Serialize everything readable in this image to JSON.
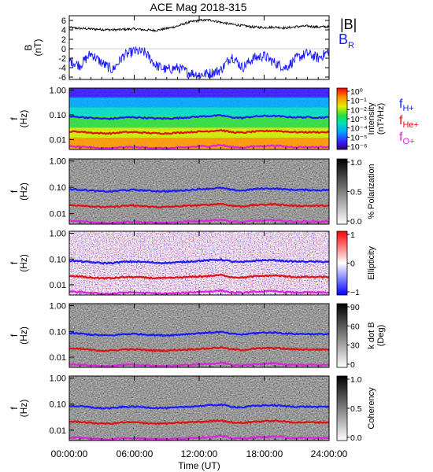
{
  "figure": {
    "title": "ACE Mag 2018-315",
    "time_axis": {
      "label": "Time (UT)",
      "tick_labels": [
        "00:00:00",
        "06:00:00",
        "12:00:00",
        "18:00:00",
        "24:00:00"
      ],
      "range_hours": [
        0,
        24
      ]
    }
  },
  "colors": {
    "B_total": "#000000",
    "B_R": "#1a1aff",
    "f_H": "#1a1aff",
    "f_He": "#e01010",
    "f_O": "#e020e0"
  },
  "legend": {
    "bt": "|B|",
    "br_main": "B",
    "br_sub": "R",
    "fh_main": "f",
    "fh_sub": "H+",
    "fhe_main": "f",
    "fhe_sub": "He+",
    "fo_main": "f",
    "fo_sub": "O+"
  },
  "panels": [
    {
      "id": "mag",
      "ylabel": [
        "B",
        "(nT)"
      ],
      "ylim": [
        -6.5,
        7
      ],
      "ticks": [
        "6",
        "4",
        "2",
        "0",
        "-2",
        "-4",
        "-6"
      ]
    },
    {
      "id": "intensity",
      "ylabel": [
        "f",
        "(Hz)"
      ],
      "ticks": [
        "1.00",
        "0.10",
        "0.01"
      ],
      "colorbar": {
        "type": "rainbow",
        "label": [
          "Intensity",
          "(nT²/Hz)"
        ],
        "ticks": [
          "10⁰",
          "10⁻¹",
          "10⁻²",
          "10⁻³",
          "10⁻⁴",
          "10⁻⁵",
          "10⁻⁶"
        ]
      }
    },
    {
      "id": "polarization",
      "ylabel": [
        "f",
        "(Hz)"
      ],
      "ticks": [
        "1.00",
        "0.10",
        "0.01"
      ],
      "colorbar": {
        "type": "gray",
        "label": [
          "% Polarization"
        ],
        "ticks": [
          "1.0",
          "0.5",
          "0.0"
        ]
      }
    },
    {
      "id": "ellipticity",
      "ylabel": [
        "f",
        "(Hz)"
      ],
      "ticks": [
        "1.00",
        "0.10",
        "0.01"
      ],
      "colorbar": {
        "type": "bwr",
        "label": [
          "Ellipticity"
        ],
        "ticks": [
          "1",
          "0",
          "−1"
        ]
      }
    },
    {
      "id": "kdotb",
      "ylabel": [
        "f",
        "(Hz)"
      ],
      "ticks": [
        "1.00",
        "0.10",
        "0.01"
      ],
      "colorbar": {
        "type": "gray",
        "label": [
          "k dot B",
          "(Deg)"
        ],
        "ticks": [
          "90",
          "60",
          "30",
          "0"
        ]
      }
    },
    {
      "id": "coherency",
      "ylabel": [
        "f",
        "(Hz)"
      ],
      "ticks": [
        "1.00",
        "0.10",
        "0.01"
      ],
      "colorbar": {
        "type": "gray",
        "label": [
          "Coherency"
        ],
        "ticks": [
          "1.0",
          "0.5",
          "0.0"
        ]
      }
    }
  ],
  "chart_data": {
    "type": "line",
    "title": "ACE Mag 2018-315",
    "xlabel": "Time (UT)",
    "x_hours": [
      0,
      1,
      2,
      3,
      4,
      5,
      6,
      7,
      8,
      9,
      10,
      11,
      12,
      13,
      14,
      15,
      16,
      17,
      18,
      19,
      20,
      21,
      22,
      23,
      24
    ],
    "magnetic_field": {
      "ylabel": "B (nT)",
      "ylim": [
        -6.5,
        7
      ],
      "series": [
        {
          "name": "|B|",
          "values": [
            4.5,
            4.3,
            4.2,
            4.1,
            4.0,
            4.1,
            4.2,
            4.0,
            3.9,
            4.3,
            4.8,
            5.6,
            6.0,
            6.1,
            5.6,
            5.2,
            4.9,
            4.6,
            4.5,
            4.6,
            4.4,
            4.7,
            4.8,
            4.6,
            4.7
          ]
        },
        {
          "name": "B",
          "values": [
            -2.5,
            -3.5,
            -1.0,
            -3.0,
            -4.5,
            -1.5,
            -0.5,
            -0.8,
            -3.5,
            -4.5,
            -4.0,
            -5.0,
            -5.5,
            -5.2,
            -4.5,
            -1.5,
            -4.0,
            -2.0,
            -1.5,
            -3.0,
            -4.0,
            -2.0,
            -1.0,
            -2.0,
            -0.5
          ]
        }
      ]
    },
    "frequency_panels": {
      "ylabel": "f (Hz)",
      "yscale": "log",
      "ylim": [
        0.004,
        1.2
      ],
      "series": [
        {
          "name": "H+",
          "values": [
            0.085,
            0.082,
            0.075,
            0.07,
            0.07,
            0.078,
            0.08,
            0.076,
            0.072,
            0.071,
            0.074,
            0.08,
            0.085,
            0.09,
            0.095,
            0.08,
            0.075,
            0.085,
            0.09,
            0.09,
            0.083,
            0.08,
            0.08,
            0.078,
            0.08
          ]
        },
        {
          "name": "He+",
          "values": [
            0.021,
            0.021,
            0.019,
            0.018,
            0.018,
            0.02,
            0.02,
            0.019,
            0.018,
            0.018,
            0.019,
            0.02,
            0.021,
            0.022,
            0.024,
            0.02,
            0.019,
            0.021,
            0.022,
            0.023,
            0.021,
            0.02,
            0.02,
            0.02,
            0.02
          ]
        },
        {
          "name": "O+",
          "values": [
            0.0053,
            0.0052,
            0.0048,
            0.0045,
            0.0045,
            0.005,
            0.005,
            0.0048,
            0.0046,
            0.0045,
            0.0047,
            0.005,
            0.0053,
            0.0055,
            0.006,
            0.005,
            0.0048,
            0.0053,
            0.0055,
            0.0057,
            0.0052,
            0.005,
            0.005,
            0.005,
            0.005
          ]
        }
      ]
    }
  }
}
